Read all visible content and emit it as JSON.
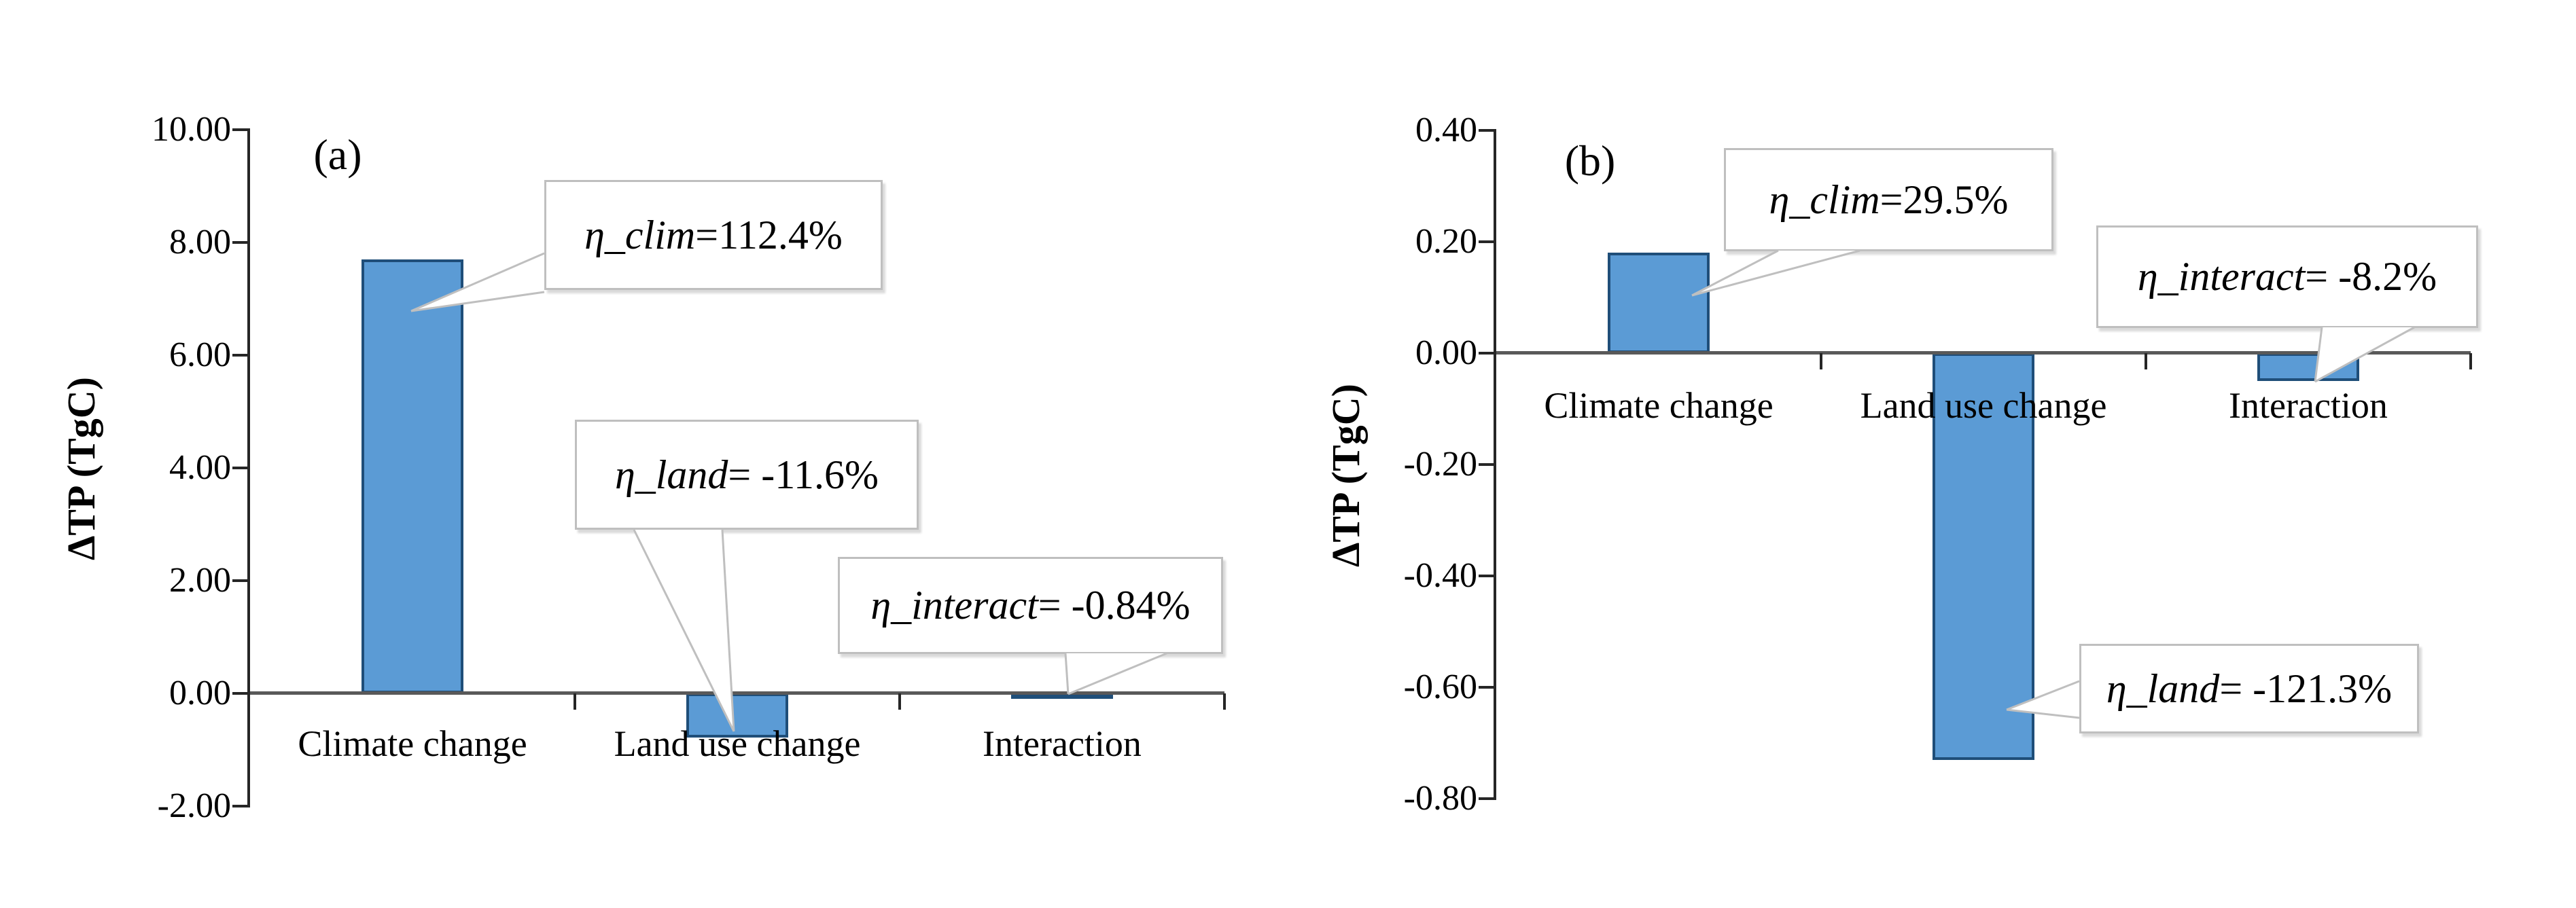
{
  "page": {
    "background": "#FFFFFF"
  },
  "styles": {
    "bar_fill": "#5B9BD5",
    "bar_border": "#1F4E79",
    "axis_baseline_color": "#595959",
    "spine_color": "#262626",
    "callout_border": "#BFBFBF",
    "callout_fill": "#FFFFFF",
    "text_color": "#000000"
  },
  "chart_data": [
    {
      "id": "a",
      "type": "bar",
      "panel_label": "(a)",
      "title": "",
      "xlabel": "",
      "ylabel": "ΔTP (TgC)",
      "categories": [
        "Climate change",
        "Land use change",
        "Interaction"
      ],
      "values": [
        7.7,
        -0.78,
        -0.06
      ],
      "ylim": [
        -2.0,
        10.0
      ],
      "ytick_step": 2.0,
      "ytick_labels": [
        "10.00",
        "8.00",
        "6.00",
        "4.00",
        "2.00",
        "0.00",
        "-2.00"
      ],
      "grid": false,
      "legend": "none",
      "annotations": [
        {
          "target": "Climate change",
          "var": "η_clim",
          "val": "=112.4%",
          "text": "η_clim=112.4%"
        },
        {
          "target": "Land use change",
          "var": "η_land",
          "val": "= -11.6%",
          "text": "η_land= -11.6%"
        },
        {
          "target": "Interaction",
          "var": "η_interact",
          "val": "= -0.84%",
          "text": "η_interact= -0.84%"
        }
      ]
    },
    {
      "id": "b",
      "type": "bar",
      "panel_label": "(b)",
      "title": "",
      "xlabel": "",
      "ylabel": "ΔTP (TgC)",
      "categories": [
        "Climate change",
        "Land use change",
        "Interaction"
      ],
      "values": [
        0.18,
        -0.73,
        -0.05
      ],
      "ylim": [
        -0.8,
        0.4
      ],
      "ytick_step": 0.2,
      "ytick_labels": [
        "0.40",
        "0.20",
        "0.00",
        "-0.20",
        "-0.40",
        "-0.60",
        "-0.80"
      ],
      "grid": false,
      "legend": "none",
      "annotations": [
        {
          "target": "Climate change",
          "var": "η_clim",
          "val": "=29.5%",
          "text": "η_clim=29.5%"
        },
        {
          "target": "Land use change",
          "var": "η_land",
          "val": "= -121.3%",
          "text": "η_land= -121.3%"
        },
        {
          "target": "Interaction",
          "var": "η_interact",
          "val": "= -8.2%",
          "text": "η_interact= -8.2%"
        }
      ]
    }
  ]
}
